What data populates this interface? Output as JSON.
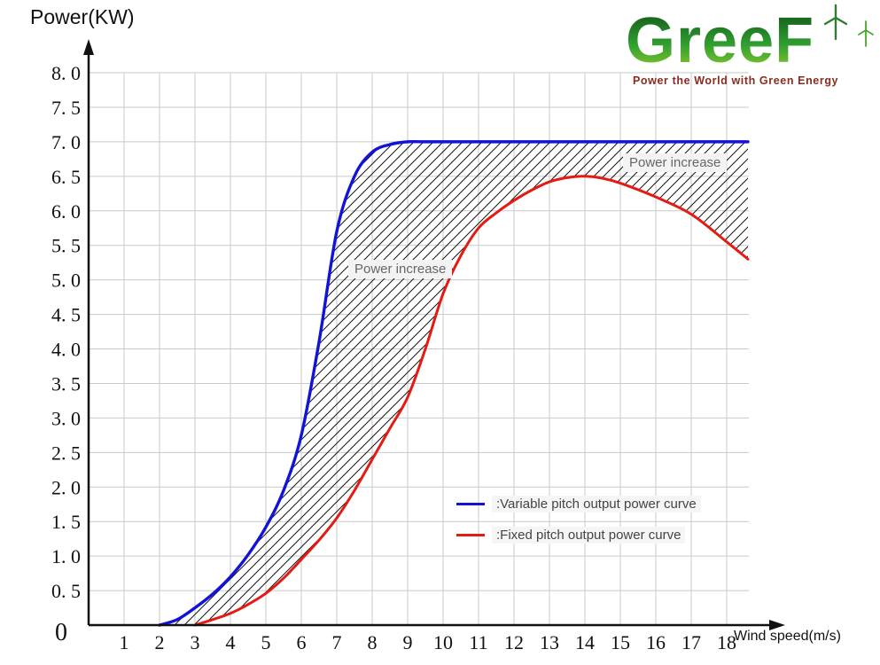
{
  "title": "Power(KW)",
  "x_axis_label": "Wind speed(m/s)",
  "origin_label": "0",
  "logo": {
    "name": "GreeF",
    "tagline": "Power the World with Green Energy",
    "gradient": [
      "#0f4d16",
      "#2f9e2f",
      "#9ad12f"
    ],
    "tagline_color": "#8b2b20"
  },
  "annotations": {
    "mid": "Power increase",
    "top_right": "Power increase"
  },
  "legend": {
    "items": [
      {
        "label": ":Variable pitch output power curve",
        "color": "#1313d8"
      },
      {
        "label": ":Fixed pitch output power curve",
        "color": "#e41b12"
      }
    ]
  },
  "chart_data": {
    "type": "line",
    "title": "Power(KW)",
    "xlabel": "Wind speed(m/s)",
    "ylabel": "Power(KW)",
    "xlim": [
      0,
      19
    ],
    "ylim": [
      0,
      8.5
    ],
    "grid": true,
    "grid_color": "#c9c9c9",
    "axis_color": "#111111",
    "hatch_between_series": true,
    "hatch_label": "Power increase",
    "legend_position": "lower-right-inside",
    "x_ticks": [
      1,
      2,
      3,
      4,
      5,
      6,
      7,
      8,
      9,
      10,
      11,
      12,
      13,
      14,
      15,
      16,
      17,
      18
    ],
    "y_ticks": [
      0.5,
      1.0,
      1.5,
      2.0,
      2.5,
      3.0,
      3.5,
      4.0,
      4.5,
      5.0,
      5.5,
      6.0,
      6.5,
      7.0,
      7.5,
      8.0
    ],
    "y_tick_labels": [
      "0. 5",
      "1. 0",
      "1. 5",
      "2. 0",
      "2. 5",
      "3. 0",
      "3. 5",
      "4. 0",
      "4. 5",
      "5. 0",
      "5. 5",
      "6. 0",
      "6. 5",
      "7. 0",
      "7. 5",
      "8. 0"
    ],
    "series": [
      {
        "name": "Variable pitch output power curve",
        "color": "#1313d8",
        "points": [
          [
            2,
            0
          ],
          [
            2.5,
            0.08
          ],
          [
            3,
            0.25
          ],
          [
            3.5,
            0.45
          ],
          [
            4,
            0.7
          ],
          [
            4.5,
            1.02
          ],
          [
            5,
            1.42
          ],
          [
            5.5,
            1.95
          ],
          [
            6,
            2.75
          ],
          [
            6.5,
            4.1
          ],
          [
            7,
            5.7
          ],
          [
            7.5,
            6.5
          ],
          [
            8,
            6.85
          ],
          [
            8.5,
            6.96
          ],
          [
            9,
            7.0
          ],
          [
            9.5,
            7.0
          ],
          [
            10,
            7.0
          ],
          [
            11,
            7.0
          ],
          [
            12,
            7.0
          ],
          [
            13,
            7.0
          ],
          [
            14,
            7.0
          ],
          [
            15,
            7.0
          ],
          [
            16,
            7.0
          ],
          [
            17,
            7.0
          ],
          [
            18,
            7.0
          ],
          [
            18.6,
            7.0
          ]
        ]
      },
      {
        "name": "Fixed pitch output power curve",
        "color": "#e41b12",
        "points": [
          [
            3,
            0
          ],
          [
            3.5,
            0.08
          ],
          [
            4,
            0.17
          ],
          [
            4.5,
            0.3
          ],
          [
            5,
            0.46
          ],
          [
            5.5,
            0.68
          ],
          [
            6,
            0.95
          ],
          [
            6.5,
            1.23
          ],
          [
            7,
            1.55
          ],
          [
            7.5,
            1.95
          ],
          [
            8,
            2.4
          ],
          [
            8.5,
            2.85
          ],
          [
            9,
            3.3
          ],
          [
            9.5,
            4.0
          ],
          [
            10,
            4.8
          ],
          [
            10.5,
            5.35
          ],
          [
            11,
            5.75
          ],
          [
            11.5,
            5.97
          ],
          [
            12,
            6.15
          ],
          [
            12.5,
            6.3
          ],
          [
            13,
            6.42
          ],
          [
            13.5,
            6.48
          ],
          [
            14,
            6.5
          ],
          [
            14.5,
            6.47
          ],
          [
            15,
            6.4
          ],
          [
            16,
            6.2
          ],
          [
            17,
            5.95
          ],
          [
            18,
            5.55
          ],
          [
            18.6,
            5.3
          ]
        ]
      }
    ]
  }
}
